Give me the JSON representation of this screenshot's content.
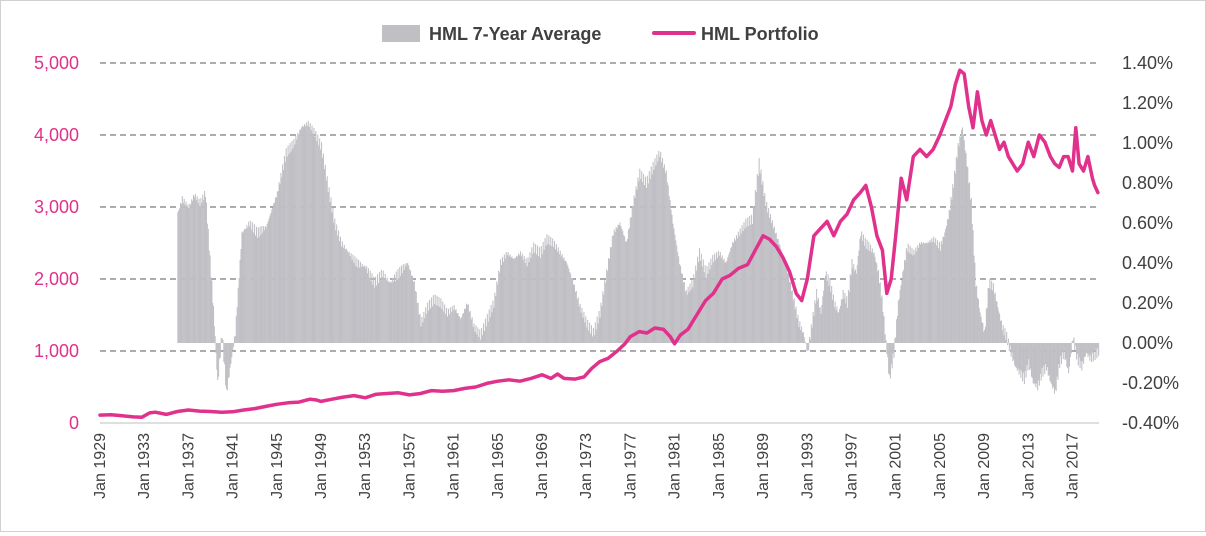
{
  "chart_data": {
    "type": "combo",
    "title": "",
    "xlabel": "",
    "ylabel_left": "",
    "ylabel_right": "",
    "x_range": [
      1929,
      2019.4
    ],
    "y_left": {
      "min": 0,
      "max": 5000,
      "ticks": [
        "0",
        "1,000",
        "2,000",
        "3,000",
        "4,000",
        "5,000"
      ],
      "tick_values": [
        0,
        1000,
        2000,
        3000,
        4000,
        5000
      ]
    },
    "y_right": {
      "min": -0.004,
      "max": 0.014,
      "ticks": [
        "-0.40%",
        "-0.20%",
        "0.00%",
        "0.20%",
        "0.40%",
        "0.60%",
        "0.80%",
        "1.00%",
        "1.20%",
        "1.40%"
      ],
      "tick_values": [
        -0.004,
        -0.002,
        0,
        0.002,
        0.004,
        0.006,
        0.008,
        0.01,
        0.012,
        0.014
      ]
    },
    "x_ticks": [
      "Jan 1929",
      "Jan 1933",
      "Jan 1937",
      "Jan 1941",
      "Jan 1945",
      "Jan 1949",
      "Jan 1953",
      "Jan 1957",
      "Jan 1961",
      "Jan 1965",
      "Jan 1969",
      "Jan 1973",
      "Jan 1977",
      "Jan 1981",
      "Jan 1985",
      "Jan 1989",
      "Jan 1993",
      "Jan 1997",
      "Jan 2001",
      "Jan 2005",
      "Jan 2009",
      "Jan 2013",
      "Jan 2017"
    ],
    "x_tick_years": [
      1929,
      1933,
      1937,
      1941,
      1945,
      1949,
      1953,
      1957,
      1961,
      1965,
      1969,
      1973,
      1977,
      1981,
      1985,
      1989,
      1993,
      1997,
      2001,
      2005,
      2009,
      2013,
      2017
    ],
    "grid": "horizontal dashed",
    "legend_position": "top-center",
    "series": [
      {
        "name": "HML 7-Year Average",
        "type": "area",
        "axis": "right",
        "color": "#bfbfc4",
        "x": [
          1936.0,
          1936.4,
          1937.0,
          1937.5,
          1938.0,
          1938.5,
          1939.0,
          1939.3,
          1939.6,
          1940.0,
          1940.4,
          1940.8,
          1941.2,
          1941.8,
          1942.5,
          1943.2,
          1944.0,
          1945.0,
          1945.8,
          1946.5,
          1947.2,
          1947.8,
          1948.4,
          1949.0,
          1949.6,
          1950.2,
          1950.8,
          1951.5,
          1952.2,
          1953.0,
          1953.8,
          1954.5,
          1955.2,
          1956.0,
          1956.8,
          1957.4,
          1958.0,
          1958.6,
          1959.2,
          1959.8,
          1960.4,
          1961.0,
          1961.6,
          1962.2,
          1962.8,
          1963.4,
          1964.0,
          1964.6,
          1965.2,
          1965.8,
          1966.4,
          1967.0,
          1967.6,
          1968.2,
          1968.8,
          1969.4,
          1970.0,
          1970.6,
          1971.2,
          1971.8,
          1972.4,
          1973.0,
          1973.6,
          1974.2,
          1974.8,
          1975.4,
          1976.0,
          1976.6,
          1977.2,
          1977.8,
          1978.4,
          1979.0,
          1979.6,
          1980.2,
          1980.8,
          1981.4,
          1982.0,
          1982.6,
          1983.2,
          1983.8,
          1984.4,
          1985.0,
          1985.6,
          1986.2,
          1986.8,
          1987.4,
          1988.0,
          1988.6,
          1989.2,
          1989.8,
          1990.4,
          1991.0,
          1991.6,
          1992.2,
          1992.6,
          1993.0,
          1993.4,
          1993.8,
          1994.2,
          1994.6,
          1995.0,
          1995.4,
          1995.8,
          1996.2,
          1996.6,
          1997.0,
          1997.4,
          1997.8,
          1998.2,
          1998.6,
          1999.0,
          1999.4,
          1999.8,
          2000.0,
          2000.4,
          2000.8,
          2001.2,
          2001.6,
          2002.0,
          2002.6,
          2003.2,
          2003.8,
          2004.4,
          2005.0,
          2005.4,
          2005.8,
          2006.2,
          2006.6,
          2007.0,
          2007.4,
          2007.8,
          2008.2,
          2008.6,
          2009.0,
          2009.4,
          2009.8,
          2010.2,
          2010.6,
          2011.0,
          2011.4,
          2011.8,
          2012.2,
          2012.6,
          2013.0,
          2013.4,
          2013.8,
          2014.2,
          2014.6,
          2015.0,
          2015.4,
          2015.8,
          2016.2,
          2016.6,
          2017.0,
          2017.4,
          2017.8,
          2018.2,
          2018.6,
          2019.0,
          2019.4
        ],
        "values": [
          0.0065,
          0.0072,
          0.0068,
          0.0074,
          0.007,
          0.0075,
          0.0035,
          0.001,
          -0.002,
          0.0005,
          -0.0025,
          -0.001,
          0.0005,
          0.0055,
          0.006,
          0.0055,
          0.0058,
          0.0075,
          0.0095,
          0.01,
          0.0108,
          0.011,
          0.0105,
          0.0098,
          0.0078,
          0.006,
          0.005,
          0.0045,
          0.004,
          0.0038,
          0.003,
          0.0035,
          0.003,
          0.0035,
          0.004,
          0.003,
          0.001,
          0.0018,
          0.0022,
          0.002,
          0.0015,
          0.0018,
          0.0012,
          0.002,
          0.0008,
          0.0004,
          0.0012,
          0.002,
          0.004,
          0.0045,
          0.0042,
          0.0045,
          0.004,
          0.0048,
          0.0045,
          0.0052,
          0.005,
          0.0045,
          0.004,
          0.003,
          0.0018,
          0.001,
          0.0005,
          0.0015,
          0.0035,
          0.0055,
          0.006,
          0.005,
          0.007,
          0.0085,
          0.008,
          0.0088,
          0.0095,
          0.0085,
          0.006,
          0.004,
          0.0025,
          0.003,
          0.0045,
          0.0035,
          0.0042,
          0.0045,
          0.004,
          0.005,
          0.0055,
          0.006,
          0.0062,
          0.009,
          0.007,
          0.006,
          0.005,
          0.004,
          0.0025,
          0.001,
          0.0005,
          -0.0005,
          0.001,
          0.0025,
          0.0015,
          0.0035,
          0.003,
          0.002,
          0.0015,
          0.0025,
          0.002,
          0.004,
          0.0035,
          0.0055,
          0.005,
          0.0048,
          0.0045,
          0.0035,
          0.0018,
          0.0005,
          -0.0018,
          -0.0005,
          0.002,
          0.0035,
          0.0048,
          0.0045,
          0.005,
          0.005,
          0.0052,
          0.0048,
          0.0055,
          0.0065,
          0.008,
          0.0098,
          0.0108,
          0.009,
          0.007,
          0.003,
          0.0015,
          0.0005,
          0.003,
          0.0028,
          0.0018,
          0.0008,
          0.0003,
          -0.0005,
          -0.0012,
          -0.0015,
          -0.0018,
          -0.001,
          -0.002,
          -0.0022,
          -0.0015,
          -0.0012,
          -0.002,
          -0.0025,
          -0.001,
          -0.0005,
          -0.0015,
          0.0003,
          -0.0008,
          -0.0012,
          -0.0005,
          -0.0008,
          -0.0006,
          -0.0004
        ]
      },
      {
        "name": "HML Portfolio",
        "type": "line",
        "axis": "left",
        "color": "#e0318c",
        "x": [
          1929.0,
          1930.0,
          1931.0,
          1932.0,
          1932.8,
          1933.5,
          1934.0,
          1935.0,
          1936.0,
          1937.0,
          1938.0,
          1939.0,
          1940.0,
          1941.0,
          1942.0,
          1943.0,
          1944.0,
          1945.0,
          1946.0,
          1947.0,
          1948.0,
          1948.6,
          1949.0,
          1950.0,
          1951.0,
          1952.0,
          1953.0,
          1954.0,
          1955.0,
          1956.0,
          1957.0,
          1958.0,
          1959.0,
          1960.0,
          1961.0,
          1962.0,
          1963.0,
          1964.0,
          1965.0,
          1966.0,
          1967.0,
          1968.0,
          1969.0,
          1969.8,
          1970.4,
          1971.0,
          1972.0,
          1972.8,
          1973.5,
          1974.2,
          1975.0,
          1975.8,
          1976.5,
          1977.0,
          1977.8,
          1978.5,
          1979.2,
          1980.0,
          1980.6,
          1981.0,
          1981.5,
          1982.2,
          1983.0,
          1983.8,
          1984.5,
          1985.3,
          1986.0,
          1986.8,
          1987.6,
          1988.3,
          1989.0,
          1989.6,
          1990.2,
          1990.8,
          1991.4,
          1992.0,
          1992.5,
          1993.0,
          1993.6,
          1994.2,
          1994.8,
          1995.4,
          1996.0,
          1996.6,
          1997.2,
          1997.8,
          1998.3,
          1998.8,
          1999.3,
          1999.8,
          2000.2,
          2000.6,
          2001.0,
          2001.5,
          2002.0,
          2002.6,
          2003.2,
          2003.8,
          2004.4,
          2005.0,
          2005.5,
          2006.0,
          2006.4,
          2006.8,
          2007.2,
          2007.6,
          2008.0,
          2008.4,
          2008.8,
          2009.2,
          2009.6,
          2010.0,
          2010.4,
          2010.8,
          2011.2,
          2011.6,
          2012.0,
          2012.5,
          2013.0,
          2013.5,
          2014.0,
          2014.5,
          2015.0,
          2015.4,
          2015.8,
          2016.2,
          2016.6,
          2017.0,
          2017.3,
          2017.6,
          2018.0,
          2018.4,
          2018.8,
          2019.0,
          2019.3
        ],
        "values": [
          110,
          115,
          100,
          85,
          80,
          140,
          150,
          120,
          160,
          180,
          165,
          160,
          150,
          155,
          180,
          200,
          230,
          260,
          280,
          290,
          330,
          320,
          300,
          330,
          360,
          380,
          350,
          400,
          410,
          420,
          390,
          410,
          450,
          440,
          450,
          480,
          500,
          550,
          580,
          600,
          580,
          620,
          670,
          620,
          680,
          620,
          610,
          640,
          760,
          850,
          900,
          1000,
          1100,
          1200,
          1270,
          1250,
          1320,
          1300,
          1200,
          1100,
          1220,
          1300,
          1500,
          1700,
          1800,
          2000,
          2050,
          2150,
          2200,
          2400,
          2600,
          2550,
          2450,
          2300,
          2100,
          1800,
          1700,
          2000,
          2600,
          2700,
          2800,
          2600,
          2800,
          2900,
          3100,
          3200,
          3300,
          3000,
          2600,
          2400,
          1800,
          2000,
          2600,
          3400,
          3100,
          3700,
          3800,
          3700,
          3800,
          4000,
          4200,
          4400,
          4700,
          4900,
          4850,
          4400,
          4100,
          4600,
          4200,
          4000,
          4200,
          4000,
          3800,
          3900,
          3700,
          3600,
          3500,
          3600,
          3900,
          3700,
          4000,
          3900,
          3700,
          3600,
          3550,
          3700,
          3700,
          3500,
          4100,
          3600,
          3500,
          3700,
          3400,
          3300,
          3200
        ]
      }
    ]
  }
}
